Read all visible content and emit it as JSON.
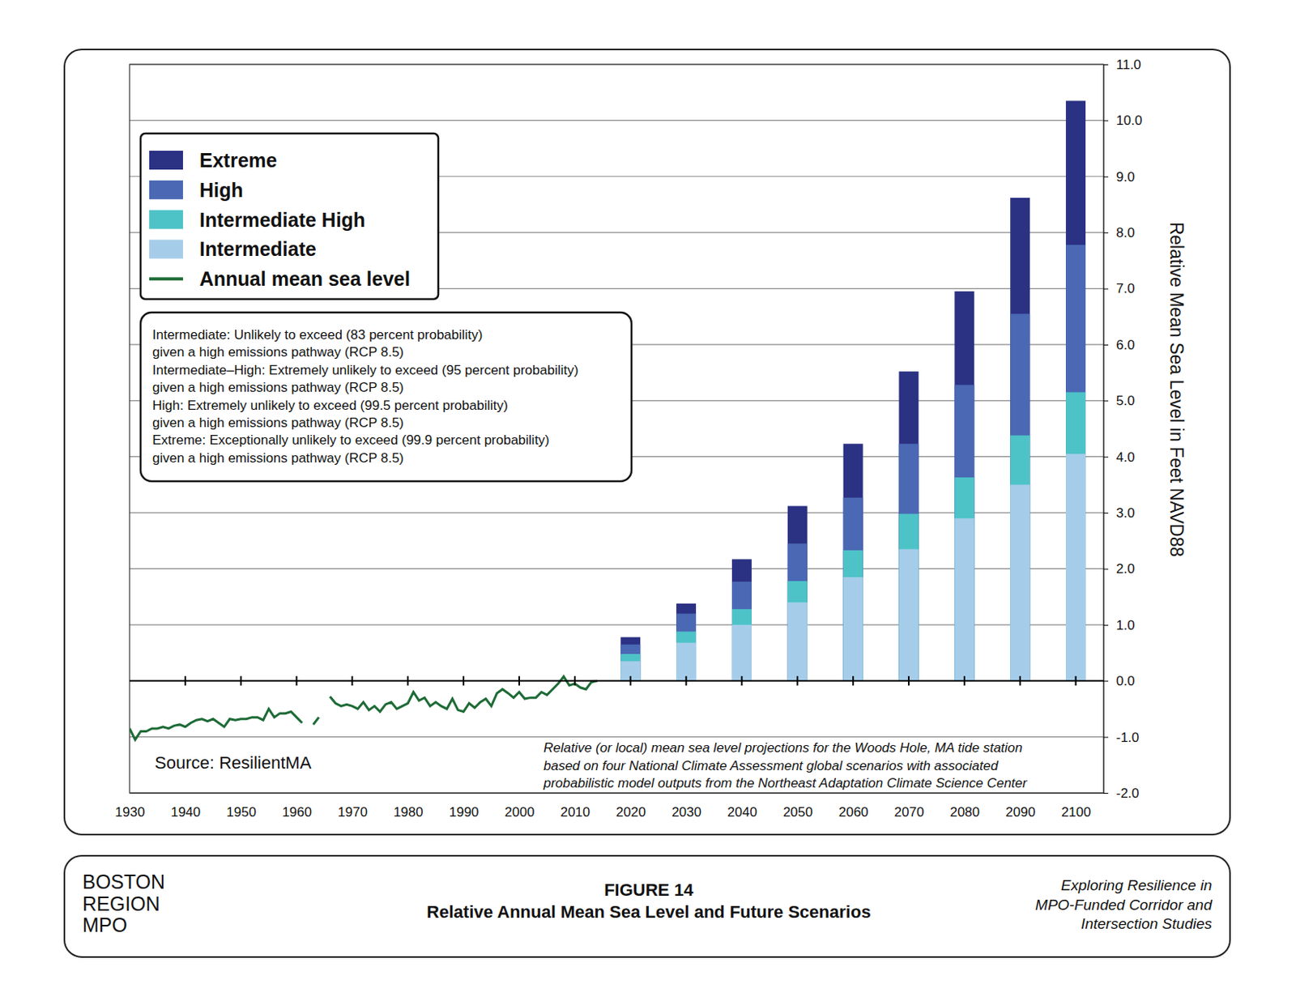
{
  "chart_data": {
    "type": "bar",
    "title": "Relative Annual Mean Sea Level and Future Scenarios",
    "subtitle": "FIGURE 14",
    "y_label": "Relative Mean Sea Level in Feet NAVD88",
    "stacked": false,
    "grid": true,
    "legend": "upper left",
    "x": [
      2020,
      2030,
      2040,
      2050,
      2060,
      2070,
      2080,
      2090,
      2100
    ],
    "xlim": [
      1930,
      2105
    ],
    "xticks": [
      1930,
      1940,
      1950,
      1960,
      1970,
      1980,
      1990,
      2000,
      2010,
      2020,
      2030,
      2040,
      2050,
      2060,
      2070,
      2080,
      2090,
      2100
    ],
    "ylim": [
      -2,
      11
    ],
    "yticks": [
      {
        "value": -2,
        "label": "-2.0"
      },
      {
        "value": -1,
        "label": "-1.0"
      },
      {
        "value": 0,
        "label": "0.0"
      },
      {
        "value": 1,
        "label": "1.0"
      },
      {
        "value": 2,
        "label": "2.0"
      },
      {
        "value": 3,
        "label": "3.0"
      },
      {
        "value": 4,
        "label": "4.0"
      },
      {
        "value": 5,
        "label": "5.0"
      },
      {
        "value": 6,
        "label": "6.0"
      },
      {
        "value": 7,
        "label": "7.0"
      },
      {
        "value": 8,
        "label": "8.0"
      },
      {
        "value": 9,
        "label": "9.0"
      },
      {
        "value": 10,
        "label": "10.0"
      },
      {
        "value": 11,
        "label": "11.0"
      }
    ],
    "series": [
      {
        "name": "Extreme",
        "type": "bar",
        "color": "#2b3183",
        "values": [
          0.78,
          1.38,
          2.17,
          3.12,
          4.23,
          5.52,
          6.95,
          8.62,
          10.35
        ]
      },
      {
        "name": "High",
        "type": "bar",
        "color": "#4a68b4",
        "values": [
          0.65,
          1.2,
          1.77,
          2.45,
          3.27,
          4.23,
          5.28,
          6.55,
          7.78
        ]
      },
      {
        "name": "Intermediate High",
        "type": "bar",
        "color": "#4dc3c8",
        "values": [
          0.48,
          0.88,
          1.28,
          1.78,
          2.33,
          2.98,
          3.63,
          4.38,
          5.15
        ]
      },
      {
        "name": "Intermediate",
        "type": "bar",
        "color": "#a5cdea",
        "values": [
          0.35,
          0.68,
          1.0,
          1.4,
          1.85,
          2.35,
          2.9,
          3.5,
          4.05
        ]
      },
      {
        "name": "Annual mean sea level",
        "type": "line",
        "color": "#1e6b36",
        "line_style": "solid",
        "x": [
          1930,
          1931,
          1932,
          1933,
          1934,
          1935,
          1936,
          1937,
          1938,
          1939,
          1940,
          1941,
          1942,
          1943,
          1944,
          1945,
          1946,
          1947,
          1948,
          1949,
          1950,
          1951,
          1952,
          1953,
          1954,
          1955,
          1956,
          1957,
          1958,
          1959,
          1960,
          1961,
          1962,
          1963,
          1964,
          1965,
          1966,
          1967,
          1968,
          1969,
          1970,
          1971,
          1972,
          1973,
          1974,
          1975,
          1976,
          1977,
          1978,
          1979,
          1980,
          1981,
          1982,
          1983,
          1984,
          1985,
          1986,
          1987,
          1988,
          1989,
          1990,
          1991,
          1992,
          1993,
          1994,
          1995,
          1996,
          1997,
          1998,
          1999,
          2000,
          2001,
          2002,
          2003,
          2004,
          2005,
          2006,
          2007,
          2008,
          2009,
          2010,
          2011,
          2012,
          2013,
          2014
        ],
        "values": [
          -0.85,
          -1.05,
          -0.9,
          -0.9,
          -0.85,
          -0.85,
          -0.82,
          -0.85,
          -0.8,
          -0.78,
          -0.82,
          -0.75,
          -0.7,
          -0.68,
          -0.72,
          -0.68,
          -0.75,
          -0.82,
          -0.68,
          -0.7,
          -0.68,
          -0.68,
          -0.65,
          -0.65,
          -0.7,
          -0.5,
          -0.65,
          -0.58,
          -0.58,
          -0.55,
          -0.65,
          -0.75,
          null,
          -0.78,
          -0.65,
          null,
          -0.28,
          -0.4,
          -0.45,
          -0.42,
          -0.45,
          -0.5,
          -0.38,
          -0.52,
          -0.45,
          -0.55,
          -0.42,
          -0.38,
          -0.5,
          -0.45,
          -0.4,
          -0.2,
          -0.35,
          -0.3,
          -0.45,
          -0.38,
          -0.45,
          -0.5,
          -0.32,
          -0.52,
          -0.55,
          -0.4,
          -0.48,
          -0.38,
          -0.32,
          -0.45,
          -0.22,
          -0.15,
          -0.22,
          -0.3,
          -0.2,
          -0.32,
          -0.3,
          -0.3,
          -0.2,
          -0.25,
          -0.15,
          -0.05,
          0.08,
          -0.08,
          -0.05,
          -0.12,
          -0.15,
          -0.02,
          0.0
        ]
      }
    ],
    "annotations": {
      "probability_note": [
        "Intermediate: Unlikely to exceed (83 percent probability)",
        "given a high emissions pathway (RCP 8.5)",
        "Intermediate–High: Extremely unlikely to exceed (95 percent probability)",
        "given a high emissions pathway (RCP 8.5)",
        "High: Extremely unlikely to exceed (99.5 percent probability)",
        "given a high emissions pathway (RCP 8.5)",
        "Extreme: Exceptionally unlikely to exceed (99.9 percent probability)",
        "given a high emissions pathway (RCP 8.5)"
      ],
      "source": "Source: ResilientMA",
      "station_note": [
        "Relative (or local) mean sea level projections for the Woods Hole, MA tide station",
        "based on four National Climate Assessment global scenarios with associated",
        "probabilistic model outputs from the Northeast Adaptation Climate Science Center"
      ],
      "organization": [
        "BOSTON",
        "REGION",
        "MPO"
      ],
      "report": [
        "Exploring Resilience in",
        "MPO-Funded Corridor and",
        "Intersection Studies"
      ]
    }
  }
}
